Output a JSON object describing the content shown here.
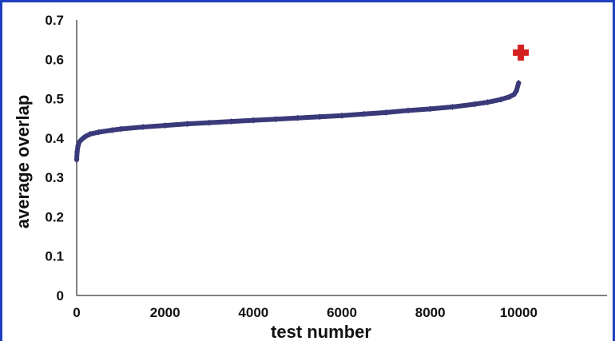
{
  "chart_data": {
    "type": "scatter",
    "title": "",
    "xlabel": "test number",
    "ylabel": "average overlap",
    "xlim": [
      0,
      12000
    ],
    "ylim": [
      0,
      0.7
    ],
    "x_ticks": [
      "0",
      "2000",
      "4000",
      "6000",
      "8000",
      "10000"
    ],
    "x_tick_values": [
      0,
      2000,
      4000,
      6000,
      8000,
      10000
    ],
    "y_ticks": [
      "0",
      "0.1",
      "0.2",
      "0.3",
      "0.4",
      "0.5",
      "0.6",
      "0.7"
    ],
    "y_tick_values": [
      0,
      0.1,
      0.2,
      0.3,
      0.4,
      0.5,
      0.6,
      0.7
    ],
    "grid": false,
    "legend": "none",
    "series": [
      {
        "marker": "diamond",
        "color": "#3a3a7a",
        "x": [
          0,
          10,
          30,
          60,
          100,
          150,
          200,
          300,
          500,
          800,
          1000,
          1500,
          2000,
          2500,
          3000,
          3500,
          4000,
          4500,
          5000,
          5500,
          6000,
          6500,
          7000,
          7500,
          8000,
          8500,
          9000,
          9300,
          9600,
          9800,
          9900,
          9950,
          10000
        ],
        "y": [
          0.345,
          0.365,
          0.38,
          0.39,
          0.395,
          0.4,
          0.404,
          0.41,
          0.415,
          0.42,
          0.423,
          0.428,
          0.432,
          0.436,
          0.439,
          0.442,
          0.445,
          0.448,
          0.451,
          0.454,
          0.457,
          0.461,
          0.465,
          0.47,
          0.474,
          0.479,
          0.486,
          0.491,
          0.498,
          0.505,
          0.511,
          0.52,
          0.54
        ]
      },
      {
        "marker": "plus",
        "color": "#d42020",
        "x": [
          10050
        ],
        "y": [
          0.617
        ]
      }
    ]
  }
}
